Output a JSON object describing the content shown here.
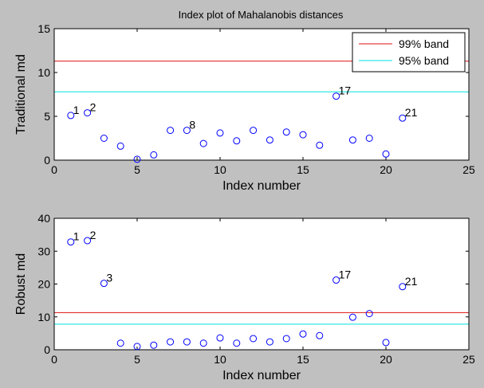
{
  "figure_title": "Index plot of Mahalanobis distances",
  "chart_data": [
    {
      "type": "scatter",
      "title": "Index plot of Mahalanobis distances",
      "xlabel": "Index number",
      "ylabel": "Traditional md",
      "xlim": [
        0,
        25
      ],
      "ylim": [
        0,
        15
      ],
      "xticks": [
        0,
        5,
        10,
        15,
        20,
        25
      ],
      "yticks": [
        0,
        5,
        10,
        15
      ],
      "grid": false,
      "marker": "circle",
      "marker_color": "#0000ff",
      "x": [
        1,
        2,
        3,
        4,
        5,
        6,
        7,
        8,
        9,
        10,
        11,
        12,
        13,
        14,
        15,
        16,
        17,
        18,
        19,
        20,
        21
      ],
      "y": [
        5.1,
        5.4,
        2.5,
        1.6,
        0.1,
        0.6,
        3.4,
        3.4,
        1.9,
        3.1,
        2.2,
        3.4,
        2.3,
        3.2,
        2.9,
        1.7,
        7.3,
        2.3,
        2.5,
        0.7,
        4.8
      ],
      "point_labels": [
        {
          "index": 1,
          "text": "1"
        },
        {
          "index": 2,
          "text": "2"
        },
        {
          "index": 8,
          "text": "8"
        },
        {
          "index": 17,
          "text": "17"
        },
        {
          "index": 21,
          "text": "21"
        }
      ],
      "reference_lines": [
        {
          "name": "99% band",
          "y": 11.3,
          "color": "#e01010"
        },
        {
          "name": "95% band",
          "y": 7.8,
          "color": "#00e0e0"
        }
      ],
      "legend": {
        "placement": "top-right",
        "entries": [
          "99% band",
          "95% band"
        ]
      }
    },
    {
      "type": "scatter",
      "xlabel": "Index number",
      "ylabel": "Robust md",
      "xlim": [
        0,
        25
      ],
      "ylim": [
        0,
        40
      ],
      "xticks": [
        0,
        5,
        10,
        15,
        20,
        25
      ],
      "yticks": [
        0,
        10,
        20,
        30,
        40
      ],
      "grid": false,
      "marker": "circle",
      "marker_color": "#0000ff",
      "x": [
        1,
        2,
        3,
        4,
        5,
        6,
        7,
        8,
        9,
        10,
        11,
        12,
        13,
        14,
        15,
        16,
        17,
        18,
        19,
        20,
        21
      ],
      "y": [
        32.8,
        33.2,
        20.2,
        2.0,
        1.0,
        1.4,
        2.4,
        2.4,
        2.0,
        3.6,
        2.0,
        3.4,
        2.4,
        3.4,
        4.8,
        4.3,
        21.2,
        9.9,
        11.0,
        2.2,
        19.2
      ],
      "point_labels": [
        {
          "index": 1,
          "text": "1"
        },
        {
          "index": 2,
          "text": "2"
        },
        {
          "index": 3,
          "text": "3"
        },
        {
          "index": 17,
          "text": "17"
        },
        {
          "index": 21,
          "text": "21"
        }
      ],
      "reference_lines": [
        {
          "name": "99% band",
          "y": 11.3,
          "color": "#e01010"
        },
        {
          "name": "95% band",
          "y": 7.8,
          "color": "#00e0e0"
        }
      ]
    }
  ]
}
